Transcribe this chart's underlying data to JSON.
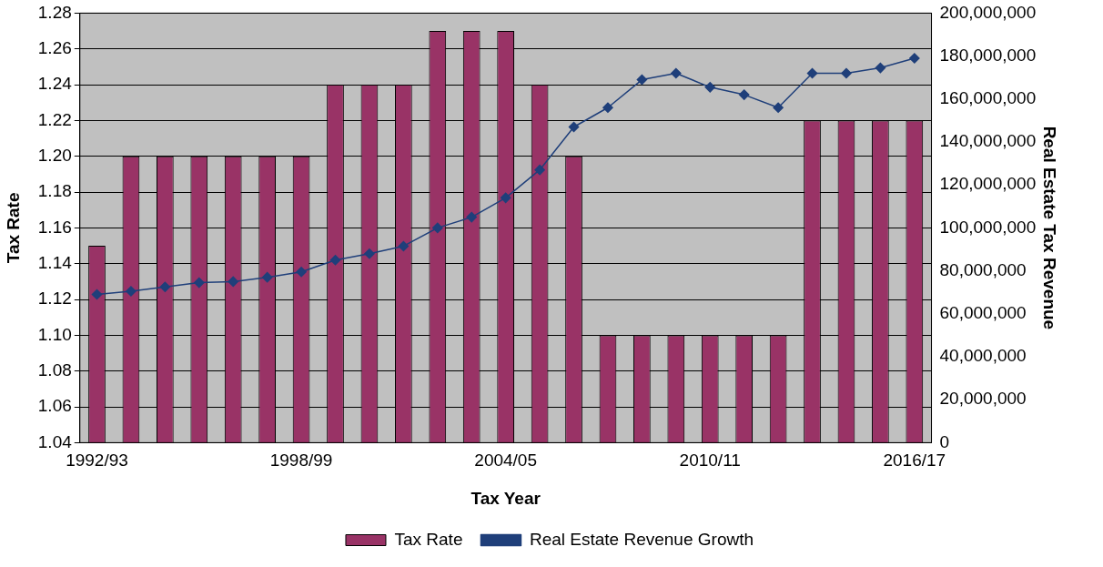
{
  "chart_data": {
    "type": "bar",
    "xlabel": "Tax Year",
    "ylabel": "Tax Rate",
    "y2label": "Real Estate Tax Revenue",
    "categories": [
      "1992/93",
      null,
      null,
      null,
      null,
      null,
      "1998/99",
      null,
      null,
      null,
      null,
      null,
      "2004/05",
      null,
      null,
      null,
      null,
      null,
      "2010/11",
      null,
      null,
      null,
      null,
      null,
      "2016/17"
    ],
    "series": [
      {
        "name": "Tax Rate",
        "color": "#993366",
        "values": [
          1.15,
          1.2,
          1.2,
          1.2,
          1.2,
          1.2,
          1.2,
          1.24,
          1.24,
          1.24,
          1.27,
          1.27,
          1.27,
          1.24,
          1.2,
          1.1,
          1.1,
          1.1,
          1.1,
          1.1,
          1.1,
          1.22,
          1.22,
          1.22,
          1.22
        ]
      },
      {
        "name": "Real Estate Revenue Growth",
        "type": "line",
        "axis": "y2",
        "color": "#1f3f7a",
        "marker": "diamond",
        "values": [
          69000000,
          70500000,
          72500000,
          74500000,
          75000000,
          77000000,
          79500000,
          85000000,
          88000000,
          91500000,
          100000000,
          105000000,
          114000000,
          127000000,
          147000000,
          156000000,
          169000000,
          172000000,
          165500000,
          162000000,
          156000000,
          172000000,
          172000000,
          174500000,
          179000000
        ]
      }
    ],
    "ylim": [
      1.04,
      1.28
    ],
    "yticks": [
      {
        "value": 1.04,
        "label": "1.04"
      },
      {
        "value": 1.06,
        "label": "1.06"
      },
      {
        "value": 1.08,
        "label": "1.08"
      },
      {
        "value": 1.1,
        "label": "1.10"
      },
      {
        "value": 1.12,
        "label": "1.12"
      },
      {
        "value": 1.14,
        "label": "1.14"
      },
      {
        "value": 1.16,
        "label": "1.16"
      },
      {
        "value": 1.18,
        "label": "1.18"
      },
      {
        "value": 1.2,
        "label": "1.20"
      },
      {
        "value": 1.22,
        "label": "1.22"
      },
      {
        "value": 1.24,
        "label": "1.24"
      },
      {
        "value": 1.26,
        "label": "1.26"
      },
      {
        "value": 1.28,
        "label": "1.28"
      }
    ],
    "y2lim": [
      0,
      200000000
    ],
    "y2ticks": [
      0,
      {
        "value": 20000000,
        "label": "20,000,000"
      },
      {
        "value": 40000000,
        "label": "40,000,000"
      },
      {
        "value": 60000000,
        "label": "60,000,000"
      },
      {
        "value": 80000000,
        "label": "80,000,000"
      },
      {
        "value": 100000000,
        "label": "100,000,000"
      },
      {
        "value": 120000000,
        "label": "120,000,000"
      },
      {
        "value": 140000000,
        "label": "140,000,000"
      },
      {
        "value": 160000000,
        "label": "160,000,000"
      },
      {
        "value": 180000000,
        "label": "180,000,000"
      },
      {
        "value": 200000000,
        "label": "200,000,000"
      }
    ],
    "grid": "y",
    "legend": "bottom"
  }
}
